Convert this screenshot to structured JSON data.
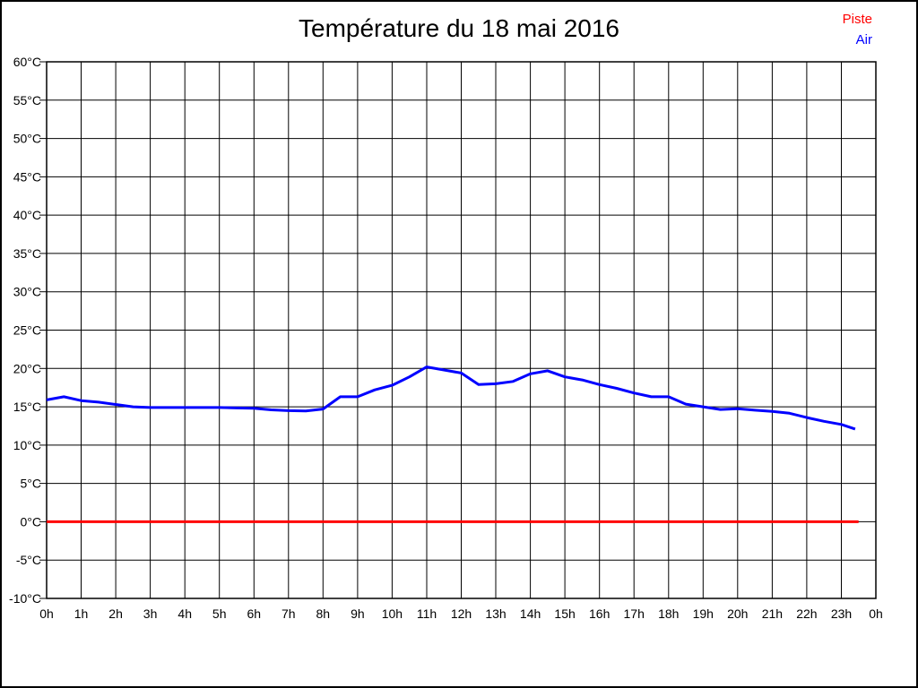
{
  "chart_data": {
    "type": "line",
    "title": "Température du 18 mai 2016",
    "xlabel": "",
    "ylabel": "",
    "xlim": [
      0,
      24
    ],
    "ylim": [
      -10,
      60
    ],
    "grid": true,
    "background": "#ffffff",
    "grid_color": "#000000",
    "text_color": "#000000",
    "border_color": "#000000",
    "legend_position": "top-right",
    "x_ticks": [
      {
        "x": 0,
        "label": "0h"
      },
      {
        "x": 1,
        "label": "1h"
      },
      {
        "x": 2,
        "label": "2h"
      },
      {
        "x": 3,
        "label": "3h"
      },
      {
        "x": 4,
        "label": "4h"
      },
      {
        "x": 5,
        "label": "5h"
      },
      {
        "x": 6,
        "label": "6h"
      },
      {
        "x": 7,
        "label": "7h"
      },
      {
        "x": 8,
        "label": "8h"
      },
      {
        "x": 9,
        "label": "9h"
      },
      {
        "x": 10,
        "label": "10h"
      },
      {
        "x": 11,
        "label": "11h"
      },
      {
        "x": 12,
        "label": "12h"
      },
      {
        "x": 13,
        "label": "13h"
      },
      {
        "x": 14,
        "label": "14h"
      },
      {
        "x": 15,
        "label": "15h"
      },
      {
        "x": 16,
        "label": "16h"
      },
      {
        "x": 17,
        "label": "17h"
      },
      {
        "x": 18,
        "label": "18h"
      },
      {
        "x": 19,
        "label": "19h"
      },
      {
        "x": 20,
        "label": "20h"
      },
      {
        "x": 21,
        "label": "21h"
      },
      {
        "x": 22,
        "label": "22h"
      },
      {
        "x": 23,
        "label": "23h"
      },
      {
        "x": 24,
        "label": "0h"
      }
    ],
    "y_ticks": [
      {
        "y": 60,
        "label": "60°C"
      },
      {
        "y": 55,
        "label": "55°C"
      },
      {
        "y": 50,
        "label": "50°C"
      },
      {
        "y": 45,
        "label": "45°C"
      },
      {
        "y": 40,
        "label": "40°C"
      },
      {
        "y": 35,
        "label": "35°C"
      },
      {
        "y": 30,
        "label": "30°C"
      },
      {
        "y": 25,
        "label": "25°C"
      },
      {
        "y": 20,
        "label": "20°C"
      },
      {
        "y": 15,
        "label": "15°C"
      },
      {
        "y": 10,
        "label": "10°C"
      },
      {
        "y": 5,
        "label": "5°C"
      },
      {
        "y": 0,
        "label": "0°C"
      },
      {
        "y": -5,
        "label": "-5°C"
      },
      {
        "y": -10,
        "label": "-10°C"
      }
    ],
    "series": [
      {
        "name": "Piste",
        "color": "#ff0000",
        "x": [
          0,
          23.5
        ],
        "values": [
          0,
          0
        ]
      },
      {
        "name": "Air",
        "color": "#0000ff",
        "x": [
          0,
          0.5,
          1,
          1.5,
          2,
          2.5,
          3,
          3.5,
          4,
          4.5,
          5,
          5.5,
          6,
          6.5,
          7,
          7.5,
          8,
          8.5,
          9,
          9.5,
          10,
          10.5,
          11,
          11.5,
          12,
          12.5,
          13,
          13.5,
          14,
          14.5,
          15,
          15.5,
          16,
          16.5,
          17,
          17.5,
          18,
          18.5,
          19,
          19.5,
          20,
          20.5,
          21,
          21.5,
          22,
          22.5,
          23,
          23.4
        ],
        "values": [
          15.9,
          16.3,
          15.8,
          15.6,
          15.3,
          15.0,
          14.9,
          14.9,
          14.9,
          14.9,
          14.9,
          14.85,
          14.8,
          14.6,
          14.5,
          14.45,
          14.7,
          16.3,
          16.3,
          17.2,
          17.8,
          18.9,
          20.2,
          19.8,
          19.4,
          17.9,
          18.0,
          18.3,
          19.3,
          19.7,
          18.9,
          18.5,
          17.9,
          17.4,
          16.8,
          16.3,
          16.3,
          15.35,
          15.0,
          14.65,
          14.75,
          14.55,
          14.4,
          14.15,
          13.6,
          13.1,
          12.7,
          12.1
        ]
      }
    ]
  }
}
